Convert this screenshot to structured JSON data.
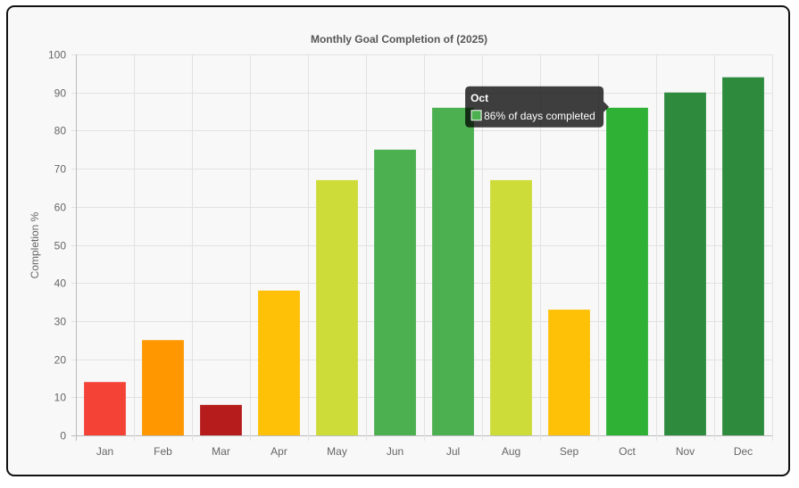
{
  "chart_data": {
    "type": "bar",
    "title": "Monthly Goal Completion of (2025)",
    "xlabel": "",
    "ylabel": "Completion %",
    "ylim": [
      0,
      100
    ],
    "yticks": [
      0,
      10,
      20,
      30,
      40,
      50,
      60,
      70,
      80,
      90,
      100
    ],
    "categories": [
      "Jan",
      "Feb",
      "Mar",
      "Apr",
      "May",
      "Jun",
      "Jul",
      "Aug",
      "Sep",
      "Oct",
      "Nov",
      "Dec"
    ],
    "values": [
      14,
      25,
      8,
      38,
      67,
      75,
      86,
      67,
      33,
      86,
      90,
      94
    ],
    "colors": [
      "#f44336",
      "#ff9800",
      "#b71c1c",
      "#ffc107",
      "#cddc39",
      "#4caf50",
      "#4caf50",
      "#cddc39",
      "#ffc107",
      "#2eb135",
      "#2e8b3e",
      "#2e8b3e"
    ],
    "grid": true,
    "legend": "none",
    "tooltip": {
      "title": "Oct",
      "text": "86% of days completed",
      "swatch_color": "#4caf50"
    }
  }
}
